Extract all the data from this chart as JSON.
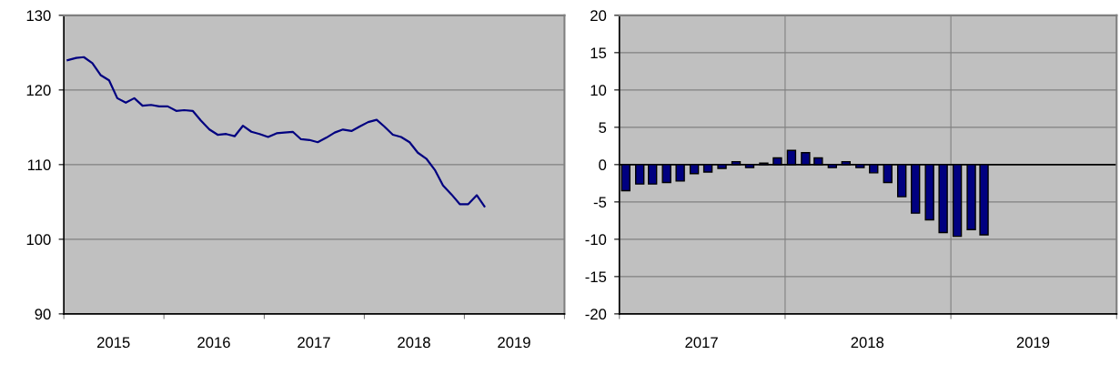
{
  "chart_data": [
    {
      "type": "line",
      "x": [
        "2015-01-15",
        "2015-02-15",
        "2015-03-15",
        "2015-04-15",
        "2015-05-15",
        "2015-06-15",
        "2015-07-15",
        "2015-08-15",
        "2015-09-15",
        "2015-10-15",
        "2015-11-15",
        "2015-12-15",
        "2016-01-15",
        "2016-02-15",
        "2016-03-15",
        "2016-04-15",
        "2016-05-15",
        "2016-06-15",
        "2016-07-15",
        "2016-08-15",
        "2016-09-15",
        "2016-10-15",
        "2016-11-15",
        "2016-12-15",
        "2017-01-15",
        "2017-02-15",
        "2017-03-15",
        "2017-04-15",
        "2017-05-15",
        "2017-06-15",
        "2017-07-15",
        "2017-08-15",
        "2017-09-15",
        "2017-10-15",
        "2017-11-15",
        "2017-12-15",
        "2018-01-15",
        "2018-02-15",
        "2018-03-15",
        "2018-04-15",
        "2018-05-15",
        "2018-06-15",
        "2018-07-15",
        "2018-08-15",
        "2018-09-15",
        "2018-10-15",
        "2018-11-15",
        "2018-12-15",
        "2019-01-15",
        "2019-02-15",
        "2019-03-15"
      ],
      "series": [
        {
          "color": "#000080",
          "values": [
            124.0,
            124.3,
            124.4,
            123.6,
            122.0,
            121.3,
            118.9,
            118.3,
            118.9,
            117.9,
            118.0,
            117.8,
            117.8,
            117.2,
            117.3,
            117.2,
            115.9,
            114.7,
            114.0,
            114.1,
            113.8,
            115.2,
            114.4,
            114.1,
            113.7,
            114.2,
            114.3,
            114.4,
            113.4,
            113.3,
            113.0,
            113.6,
            114.3,
            114.7,
            114.5,
            115.1,
            115.7,
            116.0,
            115.1,
            114.0,
            113.7,
            113.0,
            111.6,
            110.8,
            109.3,
            107.2,
            106.0,
            104.7,
            104.7,
            105.9,
            104.4
          ]
        }
      ],
      "xlim": [
        "2015-01-01",
        "2020-01-01"
      ],
      "xticks": [
        {
          "value": "2015-01-01",
          "label": null
        },
        {
          "value": "2015-07-01",
          "label": "2015"
        },
        {
          "value": "2016-01-01",
          "label": null
        },
        {
          "value": "2016-07-01",
          "label": "2016"
        },
        {
          "value": "2017-01-01",
          "label": null
        },
        {
          "value": "2017-07-01",
          "label": "2017"
        },
        {
          "value": "2018-01-01",
          "label": null
        },
        {
          "value": "2018-07-01",
          "label": "2018"
        },
        {
          "value": "2019-01-01",
          "label": null
        },
        {
          "value": "2019-07-01",
          "label": "2019"
        },
        {
          "value": "2020-01-01",
          "label": null
        }
      ],
      "ylim": [
        90,
        130
      ],
      "yticks": [
        90,
        100,
        110,
        120,
        130
      ],
      "grid": "y",
      "marker": "none",
      "line_style": "solid"
    },
    {
      "type": "bar",
      "x": [
        "2017-01-15",
        "2017-02-15",
        "2017-03-15",
        "2017-04-15",
        "2017-05-15",
        "2017-06-15",
        "2017-07-15",
        "2017-08-15",
        "2017-09-15",
        "2017-10-15",
        "2017-11-15",
        "2017-12-15",
        "2018-01-15",
        "2018-02-15",
        "2018-03-15",
        "2018-04-15",
        "2018-05-15",
        "2018-06-15",
        "2018-07-15",
        "2018-08-15",
        "2018-09-15",
        "2018-10-15",
        "2018-11-15",
        "2018-12-15",
        "2019-01-15",
        "2019-02-15",
        "2019-03-15"
      ],
      "series": [
        {
          "color": "#000080",
          "values": [
            -3.5,
            -2.6,
            -2.6,
            -2.4,
            -2.2,
            -1.2,
            -1.0,
            -0.5,
            0.4,
            -0.4,
            0.2,
            0.9,
            1.9,
            1.6,
            0.9,
            -0.4,
            0.4,
            -0.4,
            -1.1,
            -2.4,
            -4.3,
            -6.5,
            -7.4,
            -9.1,
            -9.6,
            -8.7,
            -9.4
          ]
        }
      ],
      "xlim": [
        "2017-01-01",
        "2020-01-01"
      ],
      "xticks": [
        {
          "value": "2017-01-01",
          "label": null
        },
        {
          "value": "2017-07-01",
          "label": "2017"
        },
        {
          "value": "2018-01-01",
          "label": null
        },
        {
          "value": "2018-07-01",
          "label": "2018"
        },
        {
          "value": "2019-01-01",
          "label": null
        },
        {
          "value": "2019-07-01",
          "label": "2019"
        },
        {
          "value": "2020-01-01",
          "label": null
        }
      ],
      "ylim": [
        -20,
        20
      ],
      "yticks": [
        -20,
        -15,
        -10,
        -5,
        0,
        5,
        10,
        15,
        20
      ],
      "grid": true,
      "ref_lines": [
        {
          "axis": "y",
          "value": 0,
          "color": "#000000"
        }
      ]
    }
  ]
}
